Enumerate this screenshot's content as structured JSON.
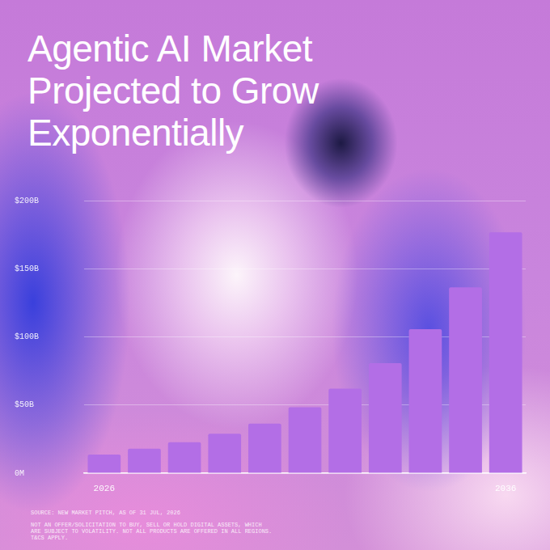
{
  "chart_data": {
    "type": "bar",
    "title": "Agentic AI Market Projected to Grow Exponentially",
    "categories": [
      "2026",
      null,
      null,
      null,
      null,
      null,
      null,
      null,
      null,
      null,
      "2036"
    ],
    "values": [
      13.6,
      18,
      22.7,
      29,
      36.4,
      48.3,
      62,
      80.7,
      105.7,
      136.4,
      176.7
    ],
    "color": "#b36ee6",
    "ylim": [
      0,
      200
    ],
    "yticks": [
      {
        "value": 0,
        "label": "0M"
      },
      {
        "value": 50,
        "label": "$50B"
      },
      {
        "value": 100,
        "label": "$100B"
      },
      {
        "value": 150,
        "label": "$150B"
      },
      {
        "value": 200,
        "label": "$200B"
      }
    ],
    "grid": true,
    "source": "SOURCE: NEW MARKET PITCH, AS OF 31 JUL, 2026",
    "footnote": "NOT AN OFFER/SOLICITATION TO BUY, SELL OR HOLD DIGITAL ASSETS, WHICH ARE SUBJECT TO VOLATILITY. NOT ALL PRODUCTS ARE OFFERED IN ALL REGIONS. T&CS APPLY."
  }
}
